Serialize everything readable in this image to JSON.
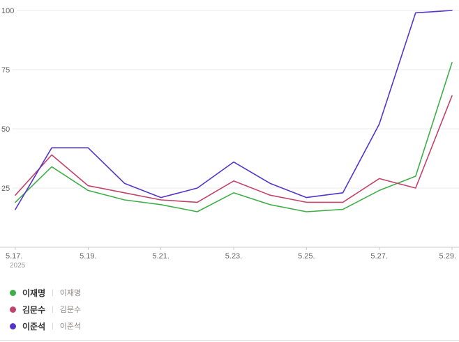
{
  "chart_data": {
    "type": "line",
    "x": [
      "5.17.",
      "5.18.",
      "5.19.",
      "5.20.",
      "5.21.",
      "5.22.",
      "5.23.",
      "5.24.",
      "5.25.",
      "5.26.",
      "5.27.",
      "5.28.",
      "5.29."
    ],
    "x_ticks_shown": [
      "5.17.",
      "5.19.",
      "5.21.",
      "5.23.",
      "5.25.",
      "5.27.",
      "5.29."
    ],
    "x_year_label": "2025",
    "ylim": [
      0,
      100
    ],
    "yticks": [
      25,
      50,
      75,
      100
    ],
    "grid": true,
    "legend_position": "bottom-left",
    "series": [
      {
        "name": "이재명",
        "color": "#3fae49",
        "values": [
          19,
          34,
          24,
          20,
          18,
          15,
          23,
          18,
          15,
          16,
          24,
          30,
          78
        ]
      },
      {
        "name": "김문수",
        "color": "#c2436a",
        "values": [
          22,
          39,
          26,
          23,
          20,
          19,
          28,
          22,
          19,
          19,
          29,
          25,
          64
        ]
      },
      {
        "name": "이준석",
        "color": "#5435c8",
        "values": [
          16,
          42,
          42,
          27,
          21,
          25,
          36,
          27,
          21,
          23,
          52,
          99,
          100
        ]
      }
    ]
  },
  "legend": {
    "separator": "|",
    "items": [
      {
        "name": "이재명",
        "sublabel": "이재명"
      },
      {
        "name": "김문수",
        "sublabel": "김문수"
      },
      {
        "name": "이준석",
        "sublabel": "이준석"
      }
    ]
  }
}
